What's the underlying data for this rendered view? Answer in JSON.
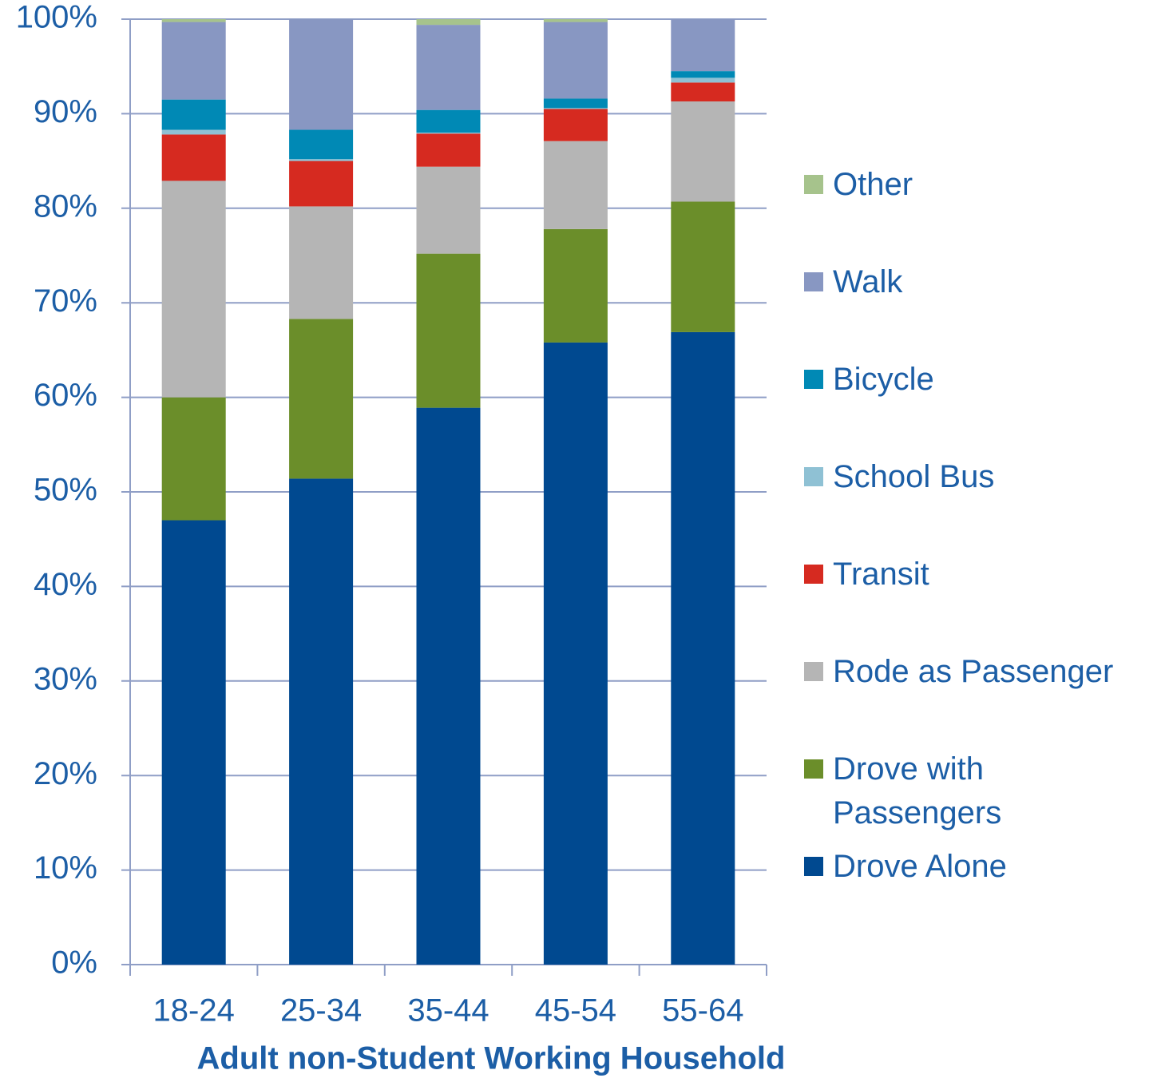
{
  "chart_data": {
    "type": "stacked_bar",
    "xlabel": "Adult non-Student Working Household",
    "categories": [
      "18-24",
      "25-34",
      "35-44",
      "45-54",
      "55-64"
    ],
    "series": [
      {
        "name": "Drove Alone",
        "color": "#004990",
        "values": [
          47.0,
          51.4,
          58.9,
          65.8,
          66.9
        ]
      },
      {
        "name": "Drove with Passengers",
        "color": "#6b8e2a",
        "values": [
          13.0,
          16.9,
          16.3,
          12.0,
          13.8
        ]
      },
      {
        "name": "Rode as Passenger",
        "color": "#b5b5b5",
        "values": [
          22.9,
          11.9,
          9.2,
          9.3,
          10.6
        ]
      },
      {
        "name": "Transit",
        "color": "#d62a20",
        "values": [
          4.9,
          4.8,
          3.5,
          3.4,
          2.0
        ]
      },
      {
        "name": "School Bus",
        "color": "#8fc1d4",
        "values": [
          0.5,
          0.2,
          0.1,
          0.1,
          0.5
        ]
      },
      {
        "name": "Bicycle",
        "color": "#0089b5",
        "values": [
          3.2,
          3.1,
          2.4,
          1.0,
          0.7
        ]
      },
      {
        "name": "Walk",
        "color": "#8897c2",
        "values": [
          8.2,
          11.7,
          9.0,
          8.1,
          5.5
        ]
      },
      {
        "name": "Other",
        "color": "#a6c38c",
        "values": [
          0.3,
          0.0,
          0.6,
          0.3,
          0.0
        ]
      }
    ],
    "ylim": [
      0,
      100
    ],
    "yticks": [
      {
        "value": 0,
        "label": "0%"
      },
      {
        "value": 10,
        "label": "10%"
      },
      {
        "value": 20,
        "label": "20%"
      },
      {
        "value": 30,
        "label": "30%"
      },
      {
        "value": 40,
        "label": "40%"
      },
      {
        "value": 50,
        "label": "50%"
      },
      {
        "value": 60,
        "label": "60%"
      },
      {
        "value": 70,
        "label": "70%"
      },
      {
        "value": 80,
        "label": "80%"
      },
      {
        "value": 90,
        "label": "90%"
      },
      {
        "value": 100,
        "label": "100%"
      }
    ],
    "grid": true
  }
}
